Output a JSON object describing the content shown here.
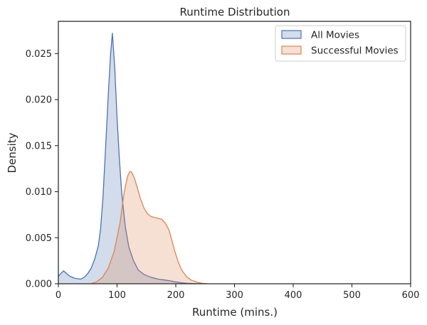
{
  "chart_data": {
    "type": "area",
    "title": "Runtime Distribution",
    "xlabel": "Runtime (mins.)",
    "ylabel": "Density",
    "xlim": [
      0,
      600
    ],
    "ylim": [
      0,
      0.0285
    ],
    "x_ticks": [
      0,
      100,
      200,
      300,
      400,
      500,
      600
    ],
    "x_tick_labels": [
      "0",
      "100",
      "200",
      "300",
      "400",
      "500",
      "600"
    ],
    "y_ticks": [
      0,
      0.005,
      0.01,
      0.015,
      0.02,
      0.025
    ],
    "y_tick_labels": [
      "0.000",
      "0.005",
      "0.010",
      "0.015",
      "0.020",
      "0.025"
    ],
    "grid": false,
    "legend_position": "top-right",
    "series": [
      {
        "name": "All Movies",
        "color": "#4c72b0",
        "fill": "#4c72b0",
        "x": [
          0,
          4,
          9,
          14,
          20,
          28,
          38,
          44,
          50,
          56,
          62,
          68,
          72,
          76,
          80,
          85,
          89,
          92,
          96,
          100,
          104,
          108,
          114,
          120,
          128,
          136,
          146,
          158,
          170,
          182,
          192,
          200,
          210,
          220,
          232,
          245
        ],
        "y": [
          0.0008,
          0.0011,
          0.0014,
          0.0011,
          0.0008,
          0.0006,
          0.0005,
          0.0007,
          0.0011,
          0.0017,
          0.0027,
          0.0041,
          0.006,
          0.0094,
          0.0142,
          0.0205,
          0.025,
          0.0272,
          0.0235,
          0.018,
          0.0135,
          0.0098,
          0.0062,
          0.004,
          0.0025,
          0.0015,
          0.001,
          0.0007,
          0.0005,
          0.0004,
          0.0003,
          0.0002,
          0.0001,
          5e-05,
          2e-05,
          0
        ]
      },
      {
        "name": "Successful Movies",
        "color": "#dd8452",
        "fill": "#dd8452",
        "x": [
          55,
          65,
          75,
          85,
          95,
          105,
          112,
          118,
          122,
          125,
          130,
          135,
          140,
          146,
          152,
          158,
          164,
          170,
          176,
          182,
          188,
          193,
          198,
          204,
          210,
          218,
          226,
          235,
          245,
          255
        ],
        "y": [
          0,
          0.0002,
          0.0007,
          0.0017,
          0.0035,
          0.0066,
          0.0099,
          0.0117,
          0.0122,
          0.0121,
          0.0114,
          0.0103,
          0.0092,
          0.0082,
          0.0076,
          0.0073,
          0.0072,
          0.0071,
          0.007,
          0.0066,
          0.0059,
          0.0048,
          0.0036,
          0.0024,
          0.0015,
          0.0008,
          0.0004,
          0.0002,
          5e-05,
          0
        ]
      }
    ]
  }
}
